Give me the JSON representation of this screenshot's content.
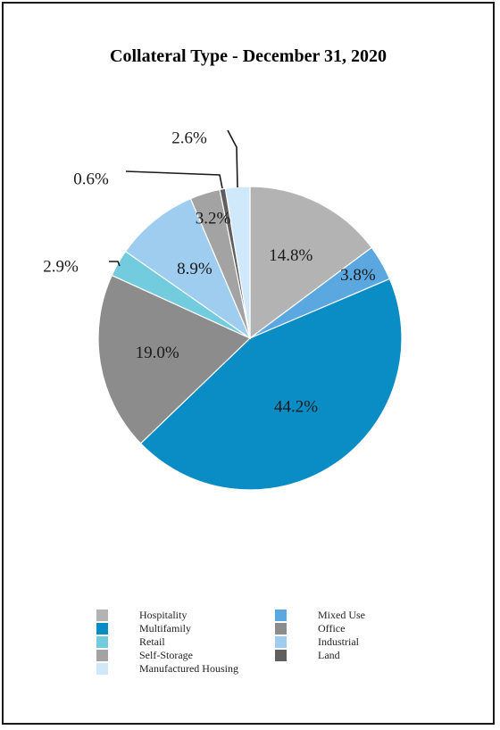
{
  "chart_data": {
    "type": "pie",
    "title": "Collateral Type - December 31, 2020",
    "start_angle_deg": 0,
    "direction": "clockwise",
    "slices": [
      {
        "name": "Hospitality",
        "value": 14.8,
        "label": "14.8%",
        "color": "#b3b3b3"
      },
      {
        "name": "Mixed Use",
        "value": 3.8,
        "label": "3.8%",
        "color": "#5ba8e0"
      },
      {
        "name": "Multifamily",
        "value": 44.2,
        "label": "44.2%",
        "color": "#0a8cc4"
      },
      {
        "name": "Office",
        "value": 19.0,
        "label": "19.0%",
        "color": "#8c8c8c"
      },
      {
        "name": "Retail",
        "value": 2.9,
        "label": "2.9%",
        "color": "#72ccdd"
      },
      {
        "name": "Industrial",
        "value": 8.9,
        "label": "8.9%",
        "color": "#9fcdf0"
      },
      {
        "name": "Self-Storage",
        "value": 3.2,
        "label": "3.2%",
        "color": "#a3a3a3"
      },
      {
        "name": "Land",
        "value": 0.6,
        "label": "0.6%",
        "color": "#5f5f5f"
      },
      {
        "name": "Manufactured Housing",
        "value": 2.6,
        "label": "2.6%",
        "color": "#cfe8fa"
      }
    ],
    "legend": {
      "placement": "bottom",
      "items": [
        {
          "label": "Hospitality",
          "color": "#b3b3b3"
        },
        {
          "label": "Mixed Use",
          "color": "#5ba8e0"
        },
        {
          "label": "Multifamily",
          "color": "#0a8cc4"
        },
        {
          "label": "Office",
          "color": "#8c8c8c"
        },
        {
          "label": "Retail",
          "color": "#72ccdd"
        },
        {
          "label": "Industrial",
          "color": "#9fcdf0"
        },
        {
          "label": "Self-Storage",
          "color": "#a3a3a3"
        },
        {
          "label": "Land",
          "color": "#5f5f5f"
        },
        {
          "label": "Manufactured Housing",
          "color": "#cfe8fa"
        }
      ]
    }
  }
}
